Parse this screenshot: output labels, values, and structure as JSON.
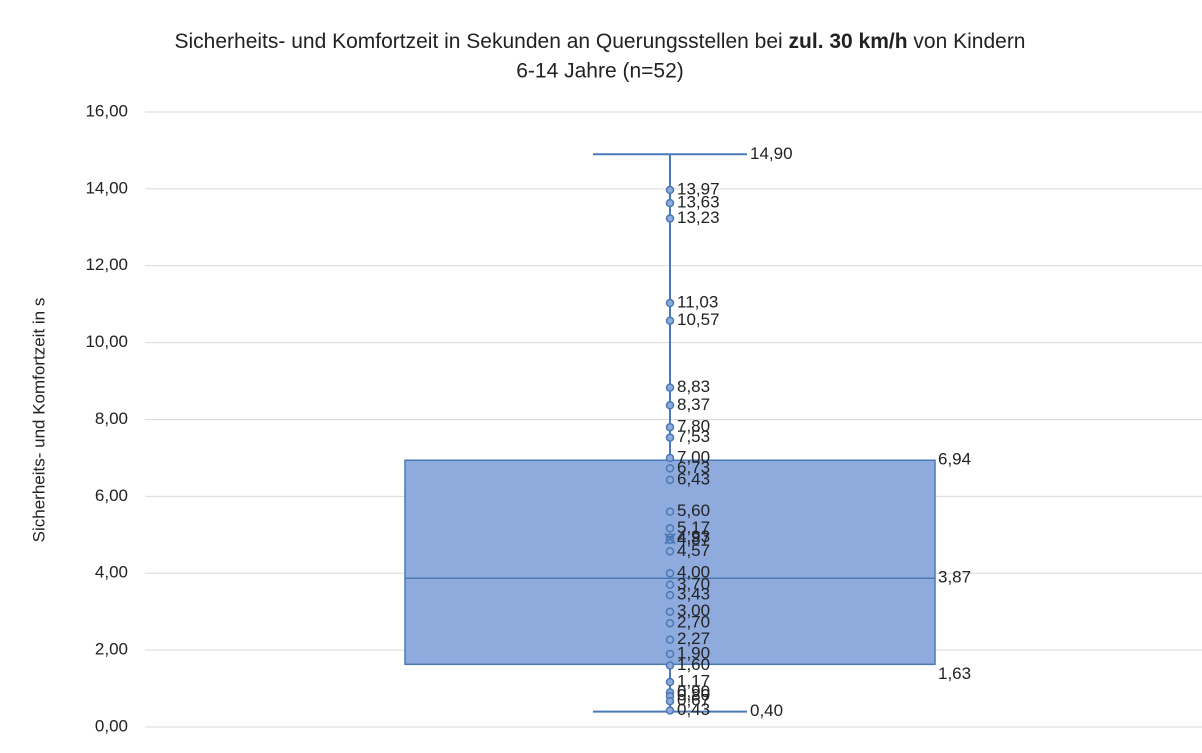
{
  "chart_data": {
    "type": "box",
    "title": {
      "line1": [
        "Sicherheits- und Komfortzeit in Sekunden an Querungsstellen bei ",
        "zul. 30 km/h",
        " von Kindern"
      ],
      "line2": "6-14 Jahre (n=52)"
    },
    "y_label": "Sicherheits- und Komfortzeit in s",
    "ylim": [
      0,
      16
    ],
    "yticks": [
      {
        "value": 0,
        "label": "0,00"
      },
      {
        "value": 2,
        "label": "2,00"
      },
      {
        "value": 4,
        "label": "4,00"
      },
      {
        "value": 6,
        "label": "6,00"
      },
      {
        "value": 8,
        "label": "8,00"
      },
      {
        "value": 10,
        "label": "10,00"
      },
      {
        "value": 12,
        "label": "12,00"
      },
      {
        "value": 14,
        "label": "14,00"
      },
      {
        "value": 16,
        "label": "16,00"
      }
    ],
    "grid": true,
    "color": "#8faadc",
    "edge_color": "#4a7ab5",
    "box": {
      "min": 0.4,
      "q1": 1.63,
      "median": 3.87,
      "q3": 6.94,
      "max": 14.9,
      "mean": 4.9
    },
    "box_labels": {
      "min": "0,40",
      "q1": "1,63",
      "median": "3,87",
      "q3": "6,94",
      "max": "14,90"
    },
    "points": [
      13.97,
      13.63,
      13.23,
      11.03,
      10.57,
      8.83,
      8.37,
      7.8,
      7.53,
      7.0,
      6.73,
      6.43,
      5.6,
      5.17,
      4.93,
      4.87,
      4.57,
      4.0,
      3.7,
      3.43,
      3.0,
      2.7,
      2.27,
      1.9,
      1.6,
      1.17,
      0.9,
      0.8,
      0.67,
      0.43
    ],
    "point_labels": [
      "13,97",
      "13,63",
      "13,23",
      "11,03",
      "10,57",
      "8,83",
      "8,37",
      "7,80",
      "7,53",
      "7,00",
      "6,73",
      "6,43",
      "5,60",
      "5,17",
      "4,93",
      "4,87",
      "4,57",
      "4,00",
      "3,70",
      "3,43",
      "3,00",
      "2,70",
      "2,27",
      "1,90",
      "1,60",
      "1,17",
      "0,90",
      "0,80",
      "0,67",
      "0,43"
    ]
  }
}
